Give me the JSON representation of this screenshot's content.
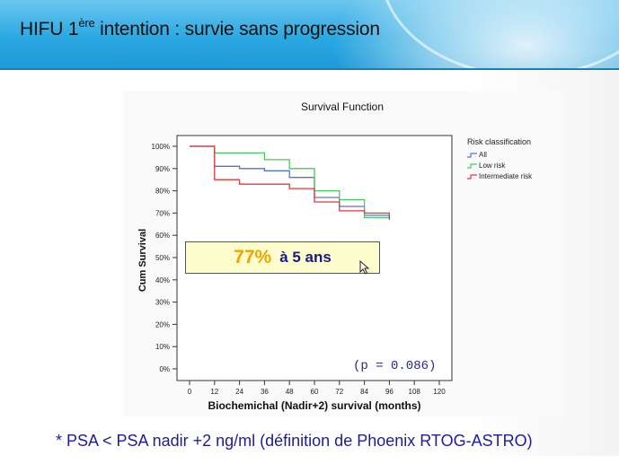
{
  "slide": {
    "title_main": "HIFU 1",
    "title_sup": "ère",
    "title_rest": " intention : survie sans progression",
    "callout_pct": "77%",
    "callout_rest": "à 5 ans",
    "pvalue": "(p = 0.086)",
    "footnote": "* PSA < PSA nadir +2 ng/ml (définition de Phoenix RTOG-ASTRO)"
  },
  "chart_data": {
    "type": "line",
    "step": true,
    "title": "Survival Function",
    "xlabel": "Biochemichal (Nadir+2) survival (months)",
    "ylabel": "Cum Survival",
    "xlim": [
      0,
      120
    ],
    "ylim": [
      0,
      100
    ],
    "x_ticks": [
      "0",
      "12",
      "24",
      "36",
      "48",
      "60",
      "72",
      "84",
      "96",
      "108",
      "120"
    ],
    "y_ticks": [
      "100%",
      "90%",
      "80%",
      "70%",
      "60%",
      "50%",
      "40%",
      "30%",
      "20%",
      "10%",
      "0%"
    ],
    "legend_title": "Risk classification",
    "legend_position": "right",
    "series": [
      {
        "name": "All",
        "color": "#5b6fd6",
        "points": [
          [
            0,
            100
          ],
          [
            12,
            100
          ],
          [
            12,
            91
          ],
          [
            24,
            91
          ],
          [
            24,
            90
          ],
          [
            36,
            90
          ],
          [
            36,
            89
          ],
          [
            48,
            89
          ],
          [
            48,
            86
          ],
          [
            60,
            86
          ],
          [
            60,
            77
          ],
          [
            72,
            77
          ],
          [
            72,
            73
          ],
          [
            84,
            73
          ],
          [
            84,
            69
          ],
          [
            96,
            69
          ],
          [
            96,
            67
          ]
        ]
      },
      {
        "name": "Low risk",
        "color": "#4cc95c",
        "points": [
          [
            0,
            100
          ],
          [
            12,
            100
          ],
          [
            12,
            97
          ],
          [
            36,
            97
          ],
          [
            36,
            94
          ],
          [
            48,
            94
          ],
          [
            48,
            90
          ],
          [
            60,
            90
          ],
          [
            60,
            80
          ],
          [
            72,
            80
          ],
          [
            72,
            76
          ],
          [
            84,
            76
          ],
          [
            84,
            68
          ],
          [
            96,
            68
          ],
          [
            96,
            68
          ]
        ]
      },
      {
        "name": "Intermediate risk",
        "color": "#e03a3a",
        "points": [
          [
            0,
            100
          ],
          [
            12,
            100
          ],
          [
            12,
            85
          ],
          [
            24,
            85
          ],
          [
            24,
            83
          ],
          [
            48,
            83
          ],
          [
            48,
            81
          ],
          [
            60,
            81
          ],
          [
            60,
            75
          ],
          [
            72,
            75
          ],
          [
            72,
            71
          ],
          [
            84,
            71
          ],
          [
            84,
            70
          ],
          [
            96,
            70
          ],
          [
            96,
            67
          ]
        ]
      }
    ]
  }
}
